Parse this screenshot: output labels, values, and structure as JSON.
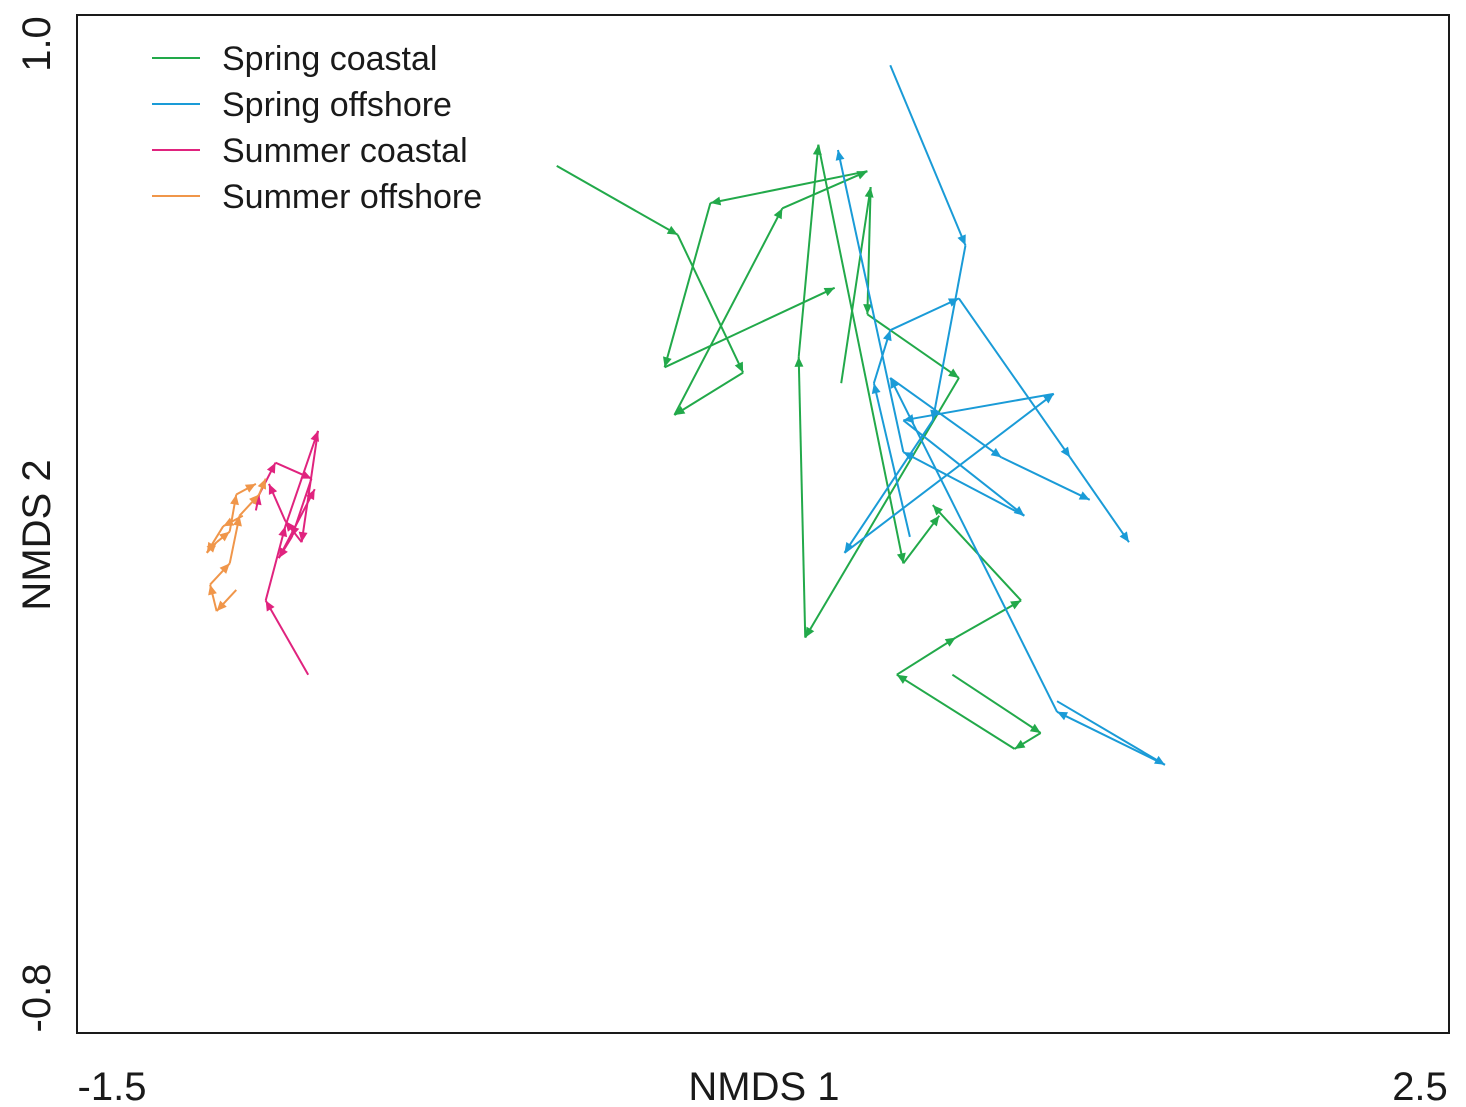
{
  "chart_data": {
    "type": "line",
    "xlabel": "NMDS 1",
    "ylabel": "NMDS 2",
    "xlim": [
      -1.5,
      2.5
    ],
    "ylim": [
      -0.8,
      1.0
    ],
    "x_ticks": [
      "-1.5",
      "2.5"
    ],
    "y_ticks": [
      "1.0",
      "-0.8"
    ],
    "legend_position": "top-left",
    "grid": false,
    "arrows": true,
    "series": [
      {
        "name": "Spring coastal",
        "color": "#22a94a",
        "trajectories": [
          [
            [
              -0.14,
              0.77
            ],
            [
              0.23,
              0.64
            ],
            [
              0.43,
              0.38
            ],
            [
              0.22,
              0.3
            ],
            [
              0.55,
              0.69
            ],
            [
              0.81,
              0.76
            ],
            [
              0.33,
              0.7
            ],
            [
              0.19,
              0.39
            ],
            [
              0.71,
              0.54
            ]
          ],
          [
            [
              0.73,
              0.36
            ],
            [
              0.82,
              0.73
            ],
            [
              0.81,
              0.49
            ],
            [
              1.09,
              0.37
            ],
            [
              0.62,
              -0.12
            ],
            [
              0.6,
              0.41
            ],
            [
              0.66,
              0.81
            ],
            [
              0.92,
              0.02
            ],
            [
              1.03,
              0.11
            ]
          ],
          [
            [
              1.07,
              -0.19
            ],
            [
              1.34,
              -0.3
            ],
            [
              1.26,
              -0.33
            ],
            [
              0.9,
              -0.19
            ],
            [
              1.08,
              -0.12
            ],
            [
              1.28,
              -0.05
            ],
            [
              1.01,
              0.13
            ]
          ]
        ]
      },
      {
        "name": "Spring offshore",
        "color": "#1a9bd7",
        "trajectories": [
          [
            [
              0.88,
              0.96
            ],
            [
              1.11,
              0.62
            ],
            [
              1.01,
              0.29
            ],
            [
              0.74,
              0.04
            ],
            [
              1.38,
              0.34
            ],
            [
              0.92,
              0.29
            ],
            [
              1.29,
              0.11
            ],
            [
              0.92,
              0.23
            ],
            [
              0.72,
              0.8
            ]
          ],
          [
            [
              1.39,
              -0.24
            ],
            [
              1.72,
              -0.36
            ],
            [
              1.39,
              -0.26
            ],
            [
              0.88,
              0.37
            ],
            [
              1.22,
              0.22
            ],
            [
              1.49,
              0.14
            ]
          ],
          [
            [
              0.94,
              0.07
            ],
            [
              0.83,
              0.36
            ],
            [
              0.88,
              0.46
            ],
            [
              1.09,
              0.52
            ],
            [
              1.43,
              0.22
            ],
            [
              1.61,
              0.06
            ]
          ]
        ]
      },
      {
        "name": "Summer coastal",
        "color": "#e0237e",
        "trajectories": [
          [
            [
              -0.9,
              -0.19
            ],
            [
              -1.03,
              -0.05
            ],
            [
              -0.97,
              0.09
            ],
            [
              -0.87,
              0.27
            ],
            [
              -0.92,
              0.06
            ],
            [
              -0.97,
              0.1
            ],
            [
              -1.02,
              0.17
            ]
          ],
          [
            [
              -1.06,
              0.12
            ],
            [
              -1.05,
              0.15
            ],
            [
              -1.0,
              0.21
            ],
            [
              -0.89,
              0.18
            ],
            [
              -0.95,
              0.07
            ],
            [
              -0.99,
              0.03
            ],
            [
              -0.88,
              0.16
            ]
          ]
        ]
      },
      {
        "name": "Summer offshore",
        "color": "#f0964a",
        "trajectories": [
          [
            [
              -1.12,
              -0.03
            ],
            [
              -1.18,
              -0.07
            ],
            [
              -1.2,
              -0.02
            ],
            [
              -1.14,
              0.02
            ],
            [
              -1.11,
              0.11
            ],
            [
              -1.05,
              0.15
            ],
            [
              -1.03,
              0.18
            ]
          ],
          [
            [
              -1.1,
              0.11
            ],
            [
              -1.16,
              0.09
            ],
            [
              -1.21,
              0.04
            ],
            [
              -1.18,
              0.06
            ],
            [
              -1.14,
              0.08
            ],
            [
              -1.12,
              0.15
            ],
            [
              -1.06,
              0.17
            ]
          ]
        ]
      }
    ]
  }
}
